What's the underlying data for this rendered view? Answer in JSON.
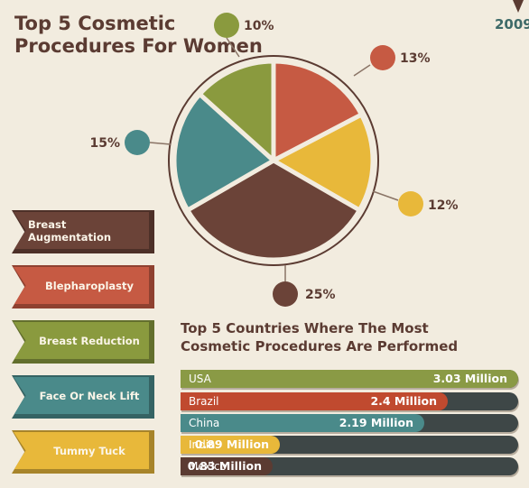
{
  "header": {
    "title_line1": "Top 5 Cosmetic",
    "title_line2": "Procedures For Women",
    "year_partial": "2009"
  },
  "countries": {
    "title_line1": "Top 5 Countries Where The Most",
    "title_line2": "Cosmetic Procedures  Are Performed"
  },
  "chart_data": [
    {
      "type": "pie",
      "title": "Top 5 Cosmetic Procedures For Women",
      "categories": [
        "Breast Augmentation",
        "Blepharoplasty",
        "Breast Reduction",
        "Face Or Neck Lift",
        "Tummy Tuck"
      ],
      "values": [
        25,
        13,
        10,
        15,
        12
      ],
      "value_labels": [
        "25%",
        "13%",
        "10%",
        "15%",
        "12%"
      ],
      "colors": [
        "#6b4338",
        "#c65a43",
        "#8a9a3e",
        "#4a8a8a",
        "#e8b83a"
      ],
      "legend_placement": "left"
    },
    {
      "type": "bar",
      "orientation": "horizontal",
      "title": "Top 5 Countries Where The Most Cosmetic Procedures Are Performed",
      "categories": [
        "USA",
        "Brazil",
        "China",
        "India",
        "Mexico"
      ],
      "values": [
        3.03,
        2.4,
        2.19,
        0.89,
        0.83
      ],
      "value_labels": [
        "3.03 Million",
        "2.4 Million",
        "2.19 Million",
        "0.89 Million",
        "0.83 Million"
      ],
      "colors": [
        "#8a9a45",
        "#c04a2f",
        "#4a8a8a",
        "#e8b83a",
        "#5b3b32"
      ],
      "xlim": [
        0,
        3.03
      ]
    }
  ]
}
